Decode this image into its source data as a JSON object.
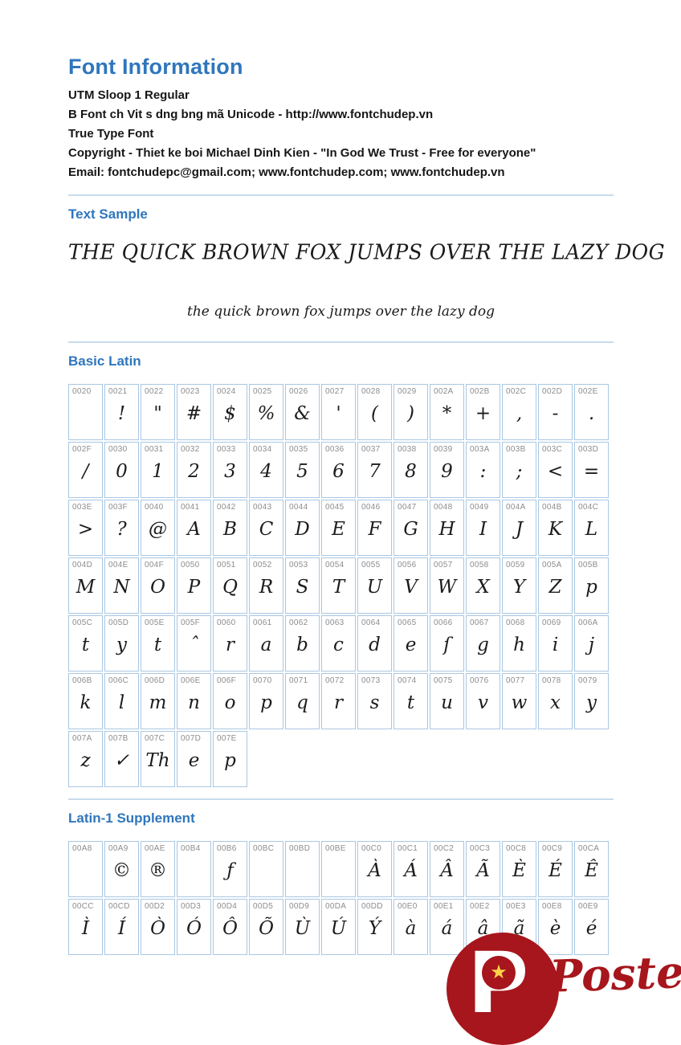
{
  "header": {
    "title": "Font Information",
    "info_lines": [
      "UTM Sloop 1 Regular",
      "B Font ch Vit s dng bng mã Unicode - http://www.fontchudep.vn",
      "True Type Font",
      "Copyright - Thiet ke boi Michael Dinh Kien - \"In God We Trust - Free for everyone\"",
      "Email: fontchudepc@gmail.com; www.fontchudep.com; www.fontchudep.vn"
    ]
  },
  "text_sample": {
    "heading": "Text Sample",
    "uppercase": "THE QUICK BROWN FOX JUMPS OVER THE LAZY DOG",
    "lowercase": "the quick brown fox jumps over the lazy dog"
  },
  "basic_latin": {
    "heading": "Basic Latin",
    "rows": [
      [
        {
          "code": "0020",
          "glyph": ""
        },
        {
          "code": "0021",
          "glyph": "!"
        },
        {
          "code": "0022",
          "glyph": "\""
        },
        {
          "code": "0023",
          "glyph": "#"
        },
        {
          "code": "0024",
          "glyph": "$"
        },
        {
          "code": "0025",
          "glyph": "%"
        },
        {
          "code": "0026",
          "glyph": "&"
        },
        {
          "code": "0027",
          "glyph": "'"
        },
        {
          "code": "0028",
          "glyph": "("
        },
        {
          "code": "0029",
          "glyph": ")"
        },
        {
          "code": "002A",
          "glyph": "*"
        },
        {
          "code": "002B",
          "glyph": "+"
        },
        {
          "code": "002C",
          "glyph": ","
        },
        {
          "code": "002D",
          "glyph": "-"
        },
        {
          "code": "002E",
          "glyph": "."
        }
      ],
      [
        {
          "code": "002F",
          "glyph": "/"
        },
        {
          "code": "0030",
          "glyph": "0"
        },
        {
          "code": "0031",
          "glyph": "1"
        },
        {
          "code": "0032",
          "glyph": "2"
        },
        {
          "code": "0033",
          "glyph": "3"
        },
        {
          "code": "0034",
          "glyph": "4"
        },
        {
          "code": "0035",
          "glyph": "5"
        },
        {
          "code": "0036",
          "glyph": "6"
        },
        {
          "code": "0037",
          "glyph": "7"
        },
        {
          "code": "0038",
          "glyph": "8"
        },
        {
          "code": "0039",
          "glyph": "9"
        },
        {
          "code": "003A",
          "glyph": ":"
        },
        {
          "code": "003B",
          "glyph": ";"
        },
        {
          "code": "003C",
          "glyph": "<"
        },
        {
          "code": "003D",
          "glyph": "="
        }
      ],
      [
        {
          "code": "003E",
          "glyph": ">"
        },
        {
          "code": "003F",
          "glyph": "?"
        },
        {
          "code": "0040",
          "glyph": "@"
        },
        {
          "code": "0041",
          "glyph": "A"
        },
        {
          "code": "0042",
          "glyph": "B"
        },
        {
          "code": "0043",
          "glyph": "C"
        },
        {
          "code": "0044",
          "glyph": "D"
        },
        {
          "code": "0045",
          "glyph": "E"
        },
        {
          "code": "0046",
          "glyph": "F"
        },
        {
          "code": "0047",
          "glyph": "G"
        },
        {
          "code": "0048",
          "glyph": "H"
        },
        {
          "code": "0049",
          "glyph": "I"
        },
        {
          "code": "004A",
          "glyph": "J"
        },
        {
          "code": "004B",
          "glyph": "K"
        },
        {
          "code": "004C",
          "glyph": "L"
        }
      ],
      [
        {
          "code": "004D",
          "glyph": "M"
        },
        {
          "code": "004E",
          "glyph": "N"
        },
        {
          "code": "004F",
          "glyph": "O"
        },
        {
          "code": "0050",
          "glyph": "P"
        },
        {
          "code": "0051",
          "glyph": "Q"
        },
        {
          "code": "0052",
          "glyph": "R"
        },
        {
          "code": "0053",
          "glyph": "S"
        },
        {
          "code": "0054",
          "glyph": "T"
        },
        {
          "code": "0055",
          "glyph": "U"
        },
        {
          "code": "0056",
          "glyph": "V"
        },
        {
          "code": "0057",
          "glyph": "W"
        },
        {
          "code": "0058",
          "glyph": "X"
        },
        {
          "code": "0059",
          "glyph": "Y"
        },
        {
          "code": "005A",
          "glyph": "Z"
        },
        {
          "code": "005B",
          "glyph": "p"
        }
      ],
      [
        {
          "code": "005C",
          "glyph": "t"
        },
        {
          "code": "005D",
          "glyph": "y"
        },
        {
          "code": "005E",
          "glyph": "t"
        },
        {
          "code": "005F",
          "glyph": "ˆ"
        },
        {
          "code": "0060",
          "glyph": "r"
        },
        {
          "code": "0061",
          "glyph": "a"
        },
        {
          "code": "0062",
          "glyph": "b"
        },
        {
          "code": "0063",
          "glyph": "c"
        },
        {
          "code": "0064",
          "glyph": "d"
        },
        {
          "code": "0065",
          "glyph": "e"
        },
        {
          "code": "0066",
          "glyph": "ſ"
        },
        {
          "code": "0067",
          "glyph": "g"
        },
        {
          "code": "0068",
          "glyph": "h"
        },
        {
          "code": "0069",
          "glyph": "i"
        },
        {
          "code": "006A",
          "glyph": "j"
        }
      ],
      [
        {
          "code": "006B",
          "glyph": "k"
        },
        {
          "code": "006C",
          "glyph": "l"
        },
        {
          "code": "006D",
          "glyph": "m"
        },
        {
          "code": "006E",
          "glyph": "n"
        },
        {
          "code": "006F",
          "glyph": "o"
        },
        {
          "code": "0070",
          "glyph": "p"
        },
        {
          "code": "0071",
          "glyph": "q"
        },
        {
          "code": "0072",
          "glyph": "r"
        },
        {
          "code": "0073",
          "glyph": "s"
        },
        {
          "code": "0074",
          "glyph": "t"
        },
        {
          "code": "0075",
          "glyph": "u"
        },
        {
          "code": "0076",
          "glyph": "v"
        },
        {
          "code": "0077",
          "glyph": "w"
        },
        {
          "code": "0078",
          "glyph": "x"
        },
        {
          "code": "0079",
          "glyph": "y"
        }
      ],
      [
        {
          "code": "007A",
          "glyph": "z"
        },
        {
          "code": "007B",
          "glyph": "✓"
        },
        {
          "code": "007C",
          "glyph": "Th"
        },
        {
          "code": "007D",
          "glyph": "e"
        },
        {
          "code": "007E",
          "glyph": "p"
        }
      ]
    ]
  },
  "latin1_supplement": {
    "heading": "Latin-1 Supplement",
    "rows": [
      [
        {
          "code": "00A8",
          "glyph": ""
        },
        {
          "code": "00A9",
          "glyph": "©"
        },
        {
          "code": "00AE",
          "glyph": "®"
        },
        {
          "code": "00B4",
          "glyph": ""
        },
        {
          "code": "00B6",
          "glyph": "ƒ"
        },
        {
          "code": "00BC",
          "glyph": ""
        },
        {
          "code": "00BD",
          "glyph": ""
        },
        {
          "code": "00BE",
          "glyph": ""
        },
        {
          "code": "00C0",
          "glyph": "À"
        },
        {
          "code": "00C1",
          "glyph": "Á"
        },
        {
          "code": "00C2",
          "glyph": "Â"
        },
        {
          "code": "00C3",
          "glyph": "Ã"
        },
        {
          "code": "00C8",
          "glyph": "È"
        },
        {
          "code": "00C9",
          "glyph": "É"
        },
        {
          "code": "00CA",
          "glyph": "Ê"
        }
      ],
      [
        {
          "code": "00CC",
          "glyph": "Ì"
        },
        {
          "code": "00CD",
          "glyph": "Í"
        },
        {
          "code": "00D2",
          "glyph": "Ò"
        },
        {
          "code": "00D3",
          "glyph": "Ó"
        },
        {
          "code": "00D4",
          "glyph": "Ô"
        },
        {
          "code": "00D5",
          "glyph": "Õ"
        },
        {
          "code": "00D9",
          "glyph": "Ù"
        },
        {
          "code": "00DA",
          "glyph": "Ú"
        },
        {
          "code": "00DD",
          "glyph": "Ý"
        },
        {
          "code": "00E0",
          "glyph": "à"
        },
        {
          "code": "00E1",
          "glyph": "á"
        },
        {
          "code": "00E2",
          "glyph": "â"
        },
        {
          "code": "00E3",
          "glyph": "ã"
        },
        {
          "code": "00E8",
          "glyph": "è"
        },
        {
          "code": "00E9",
          "glyph": "é"
        }
      ]
    ]
  },
  "watermark": {
    "brand": "Poster.vn",
    "letter": "P",
    "star": "★",
    "circle_color": "#a6161c",
    "star_color": "#ffd24a"
  },
  "colors": {
    "heading_blue": "#2f76bc",
    "divider_blue": "#c7dbec",
    "table_border": "#a9c7e2",
    "code_gray": "#8c8c8c",
    "text_black": "#161616"
  }
}
